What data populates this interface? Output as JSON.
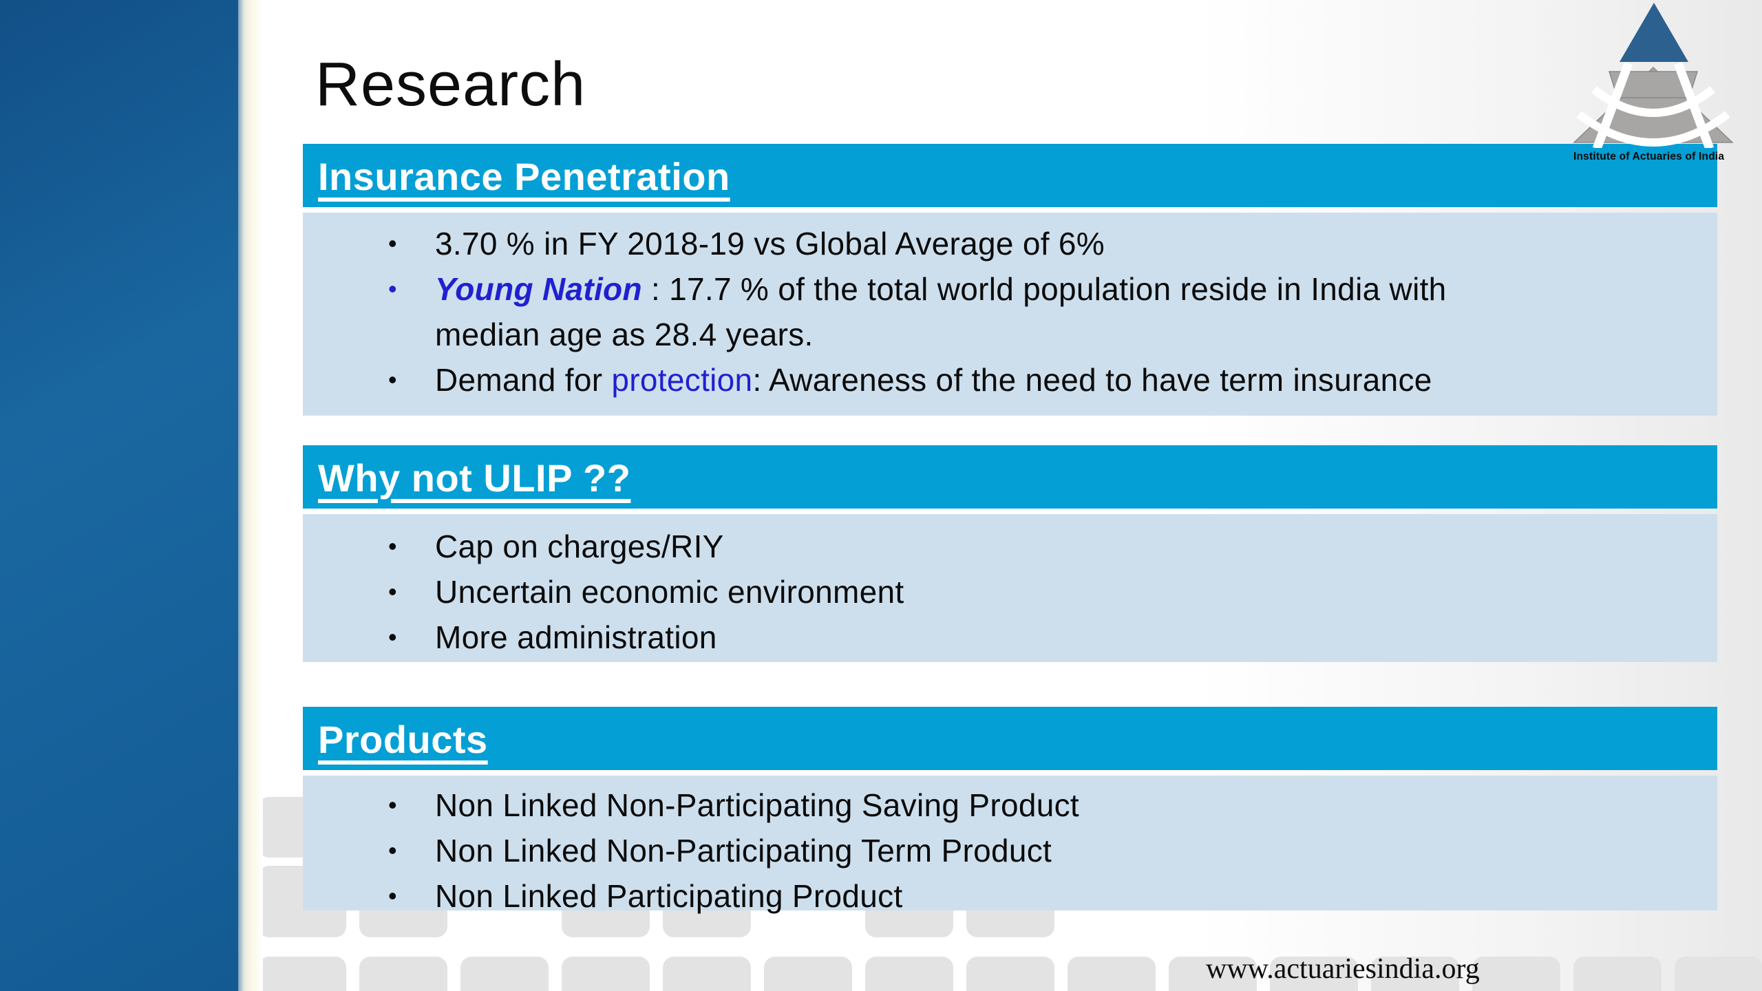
{
  "slide": {
    "title": "Research"
  },
  "logo": {
    "text": "Institute of Actuaries of India"
  },
  "footer": {
    "website": "www.actuariesindia.org"
  },
  "bullet_char": "•",
  "colors": {
    "header_bar": "#049fd5",
    "body_panel": "#cddfed",
    "sidebar_blue": "#17649d",
    "highlight_blue_text": "#2020d0",
    "logo_triangle_blue": "#2c608f",
    "logo_gray": "#a7a6a4",
    "tile_gray": "#e3e3e3"
  },
  "sections": [
    {
      "title": "Insurance Penetration",
      "bullets": [
        {
          "text": "3.70 % in FY 2018-19 vs Global Average of 6%"
        },
        {
          "highlight": "Young Nation",
          "rest": " : 17.7 % of the total world population reside in India with",
          "rest2": "median age as 28.4 years."
        },
        {
          "pre": "Demand for ",
          "highlight": "protection",
          "rest": ": Awareness of the need to have term insurance"
        }
      ]
    },
    {
      "title": "Why not ULIP ??",
      "bullets": [
        {
          "text": "Cap on charges/RIY"
        },
        {
          "text": "Uncertain economic environment"
        },
        {
          "text": "More administration"
        }
      ]
    },
    {
      "title": "Products",
      "bullets": [
        {
          "text": "Non Linked Non-Participating Saving Product"
        },
        {
          "text": "Non Linked Non-Participating Term Product"
        },
        {
          "text": "Non Linked Participating Product"
        }
      ]
    }
  ]
}
